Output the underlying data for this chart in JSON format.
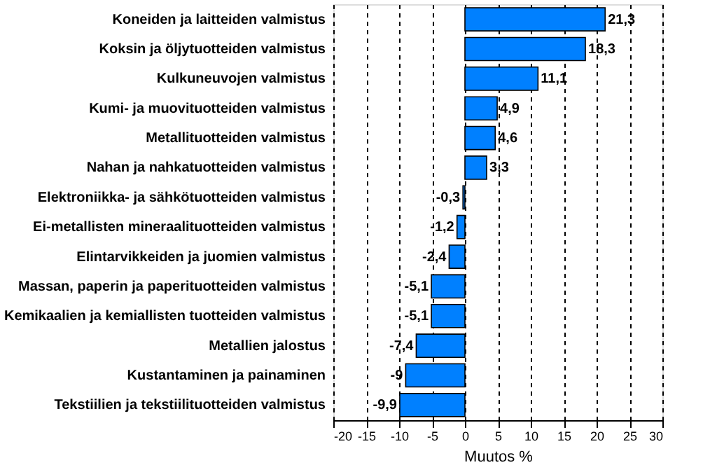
{
  "chart_data": {
    "type": "bar",
    "orientation": "horizontal",
    "xlabel": "Muutos %",
    "categories": [
      "Koneiden ja laitteiden valmistus",
      "Koksin ja öljytuotteiden valmistus",
      "Kulkuneuvojen valmistus",
      "Kumi- ja muovituotteiden valmistus",
      "Metallituotteiden valmistus",
      "Nahan ja nahkatuotteiden valmistus",
      "Elektroniikka- ja sähkötuotteiden valmistus",
      "Ei-metallisten mineraalituotteiden valmistus",
      "Elintarvikkeiden ja juomien valmistus",
      "Massan, paperin ja paperituotteiden valmistus",
      "Kemikaalien ja kemiallisten tuotteiden valmistus",
      "Metallien jalostus",
      "Kustantaminen ja painaminen",
      "Tekstiilien ja tekstiilituotteiden valmistus"
    ],
    "values": [
      21.3,
      18.3,
      11.1,
      4.9,
      4.6,
      3.3,
      -0.3,
      -1.2,
      -2.4,
      -5.1,
      -5.1,
      -7.4,
      -9,
      -9.9
    ],
    "value_labels": [
      "21,3",
      "18,3",
      "11,1",
      "4,9",
      "4,6",
      "3,3",
      "-0,3",
      "-1,2",
      "-2,4",
      "-5,1",
      "-5,1",
      "-7,4",
      "-9",
      "-9,9"
    ],
    "color": "#0080ff",
    "xlim": [
      -20,
      30
    ],
    "xticks": [
      -20,
      -15,
      -10,
      -5,
      0,
      5,
      10,
      15,
      20,
      25,
      30
    ],
    "grid": "x"
  }
}
